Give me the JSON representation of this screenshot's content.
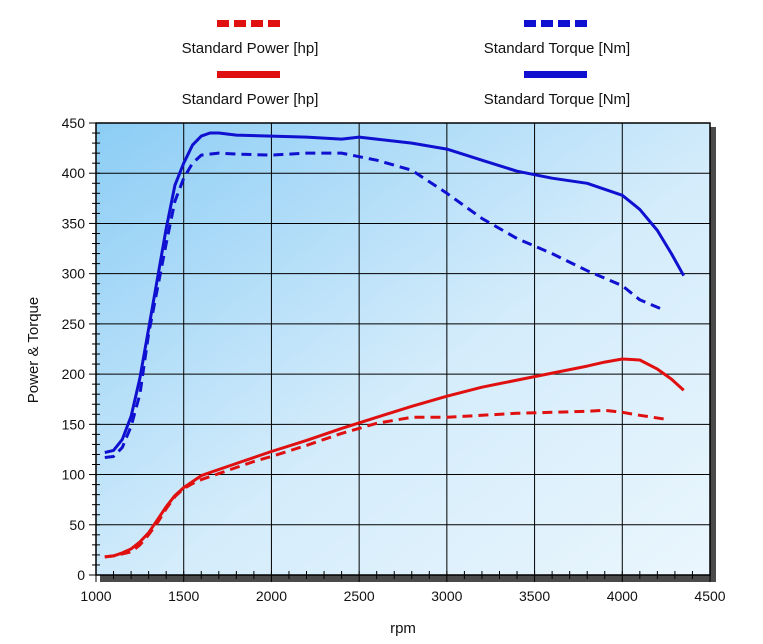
{
  "chart_data": {
    "type": "line",
    "xlabel": "rpm",
    "ylabel": "Power & Torque",
    "xlim": [
      1000,
      4500
    ],
    "ylim": [
      0,
      450
    ],
    "xticks": [
      1000,
      1500,
      2000,
      2500,
      3000,
      3500,
      4000,
      4500
    ],
    "yticks": [
      0,
      50,
      100,
      150,
      200,
      250,
      300,
      350,
      400,
      450
    ],
    "grid": true,
    "legend_position": "top",
    "legend": [
      {
        "label": "Standard Power [hp]",
        "color": "#e01010",
        "style": "dashed"
      },
      {
        "label": "Standard Torque [Nm]",
        "color": "#1010d0",
        "style": "dashed"
      },
      {
        "label": "Standard Power [hp]",
        "color": "#e01010",
        "style": "solid"
      },
      {
        "label": "Standard Torque [Nm]",
        "color": "#1010d0",
        "style": "solid"
      }
    ],
    "series": [
      {
        "name": "Standard Power [hp]",
        "color": "#e01010",
        "style": "dashed",
        "x": [
          1050,
          1100,
          1150,
          1200,
          1250,
          1300,
          1350,
          1400,
          1450,
          1500,
          1550,
          1600,
          1700,
          1800,
          1900,
          2000,
          2200,
          2400,
          2600,
          2800,
          3000,
          3200,
          3400,
          3600,
          3800,
          3900,
          4000,
          4100,
          4250
        ],
        "y": [
          18,
          19,
          21,
          23,
          30,
          40,
          52,
          66,
          78,
          86,
          91,
          95,
          101,
          107,
          113,
          118,
          129,
          141,
          151,
          157,
          157,
          159,
          161,
          162,
          163,
          164,
          162,
          159,
          155
        ]
      },
      {
        "name": "Standard Torque [Nm]",
        "color": "#1010d0",
        "style": "dashed",
        "x": [
          1050,
          1100,
          1150,
          1200,
          1250,
          1300,
          1350,
          1400,
          1450,
          1500,
          1550,
          1600,
          1700,
          1800,
          2000,
          2200,
          2400,
          2600,
          2800,
          3000,
          3200,
          3400,
          3600,
          3800,
          4000,
          4100,
          4220
        ],
        "y": [
          117,
          118,
          127,
          148,
          180,
          240,
          285,
          330,
          372,
          395,
          410,
          418,
          420,
          419,
          418,
          420,
          420,
          413,
          403,
          380,
          355,
          335,
          320,
          303,
          288,
          274,
          265
        ]
      },
      {
        "name": "Standard Power [hp]",
        "color": "#e01010",
        "style": "solid",
        "x": [
          1050,
          1100,
          1150,
          1200,
          1250,
          1300,
          1350,
          1400,
          1450,
          1500,
          1550,
          1600,
          1700,
          1800,
          1900,
          2000,
          2200,
          2400,
          2600,
          2800,
          3000,
          3200,
          3400,
          3600,
          3800,
          3900,
          4000,
          4100,
          4200,
          4280,
          4350
        ],
        "y": [
          18,
          19,
          22,
          26,
          33,
          42,
          55,
          68,
          79,
          87,
          93,
          99,
          105,
          111,
          117,
          123,
          134,
          146,
          157,
          168,
          178,
          187,
          194,
          201,
          208,
          212,
          215,
          214,
          205,
          195,
          184
        ]
      },
      {
        "name": "Standard Torque [Nm]",
        "color": "#1010d0",
        "style": "solid",
        "x": [
          1050,
          1100,
          1150,
          1200,
          1250,
          1300,
          1350,
          1400,
          1450,
          1500,
          1550,
          1600,
          1650,
          1700,
          1800,
          2000,
          2200,
          2400,
          2500,
          2600,
          2800,
          3000,
          3200,
          3400,
          3600,
          3800,
          4000,
          4100,
          4200,
          4280,
          4350
        ],
        "y": [
          122,
          124,
          135,
          158,
          196,
          245,
          295,
          345,
          388,
          410,
          428,
          437,
          440,
          440,
          438,
          437,
          436,
          434,
          436,
          434,
          430,
          424,
          413,
          402,
          395,
          390,
          378,
          364,
          343,
          320,
          298
        ]
      }
    ]
  }
}
